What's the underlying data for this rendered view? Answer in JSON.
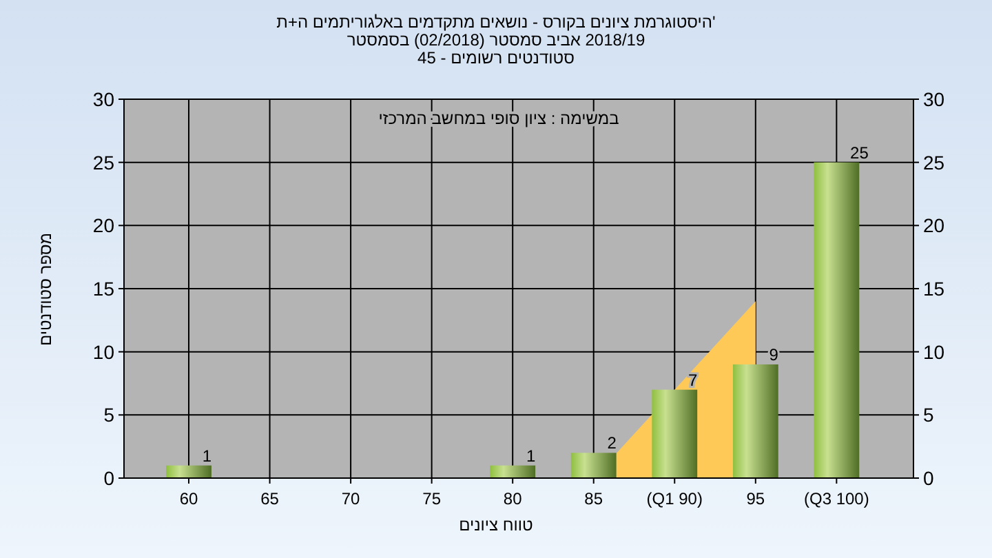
{
  "chart_data": {
    "type": "bar",
    "title": "'היסטוגרמת ציונים בקורס - נושאים מתקדמים באלגוריתמים ה+ת",
    "subtitle": "2018/19 אביב סמסטר  (02/2018)  בסמסטר",
    "annotations": [
      "סטודנטים רשומים - 45",
      "במשימה : ציון סופי במחשב המרכזי"
    ],
    "xlabel": "טווח ציונים",
    "ylabel": "מספר סטודנטים",
    "categories": [
      "60",
      "65",
      "70",
      "75",
      "80",
      "85",
      "(Q1 90)",
      "95",
      "(Q3 100)"
    ],
    "series": [
      {
        "type": "area",
        "color": "#ffc957",
        "values": [
          null,
          null,
          null,
          null,
          null,
          0,
          7,
          14,
          null
        ]
      },
      {
        "color": "#8fbf3f",
        "values": [
          1,
          0,
          0,
          0,
          1,
          2,
          7,
          9,
          25
        ],
        "value_labels": [
          "1",
          null,
          null,
          null,
          "1",
          "2",
          "7",
          "9",
          "25"
        ]
      }
    ],
    "ylim": [
      0,
      30
    ],
    "yticks": [
      0,
      5,
      10,
      15,
      20,
      25,
      30
    ],
    "y2lim": [
      0,
      30
    ],
    "y2ticks": [
      0,
      5,
      10,
      15,
      20,
      25,
      30
    ],
    "grid": true
  }
}
